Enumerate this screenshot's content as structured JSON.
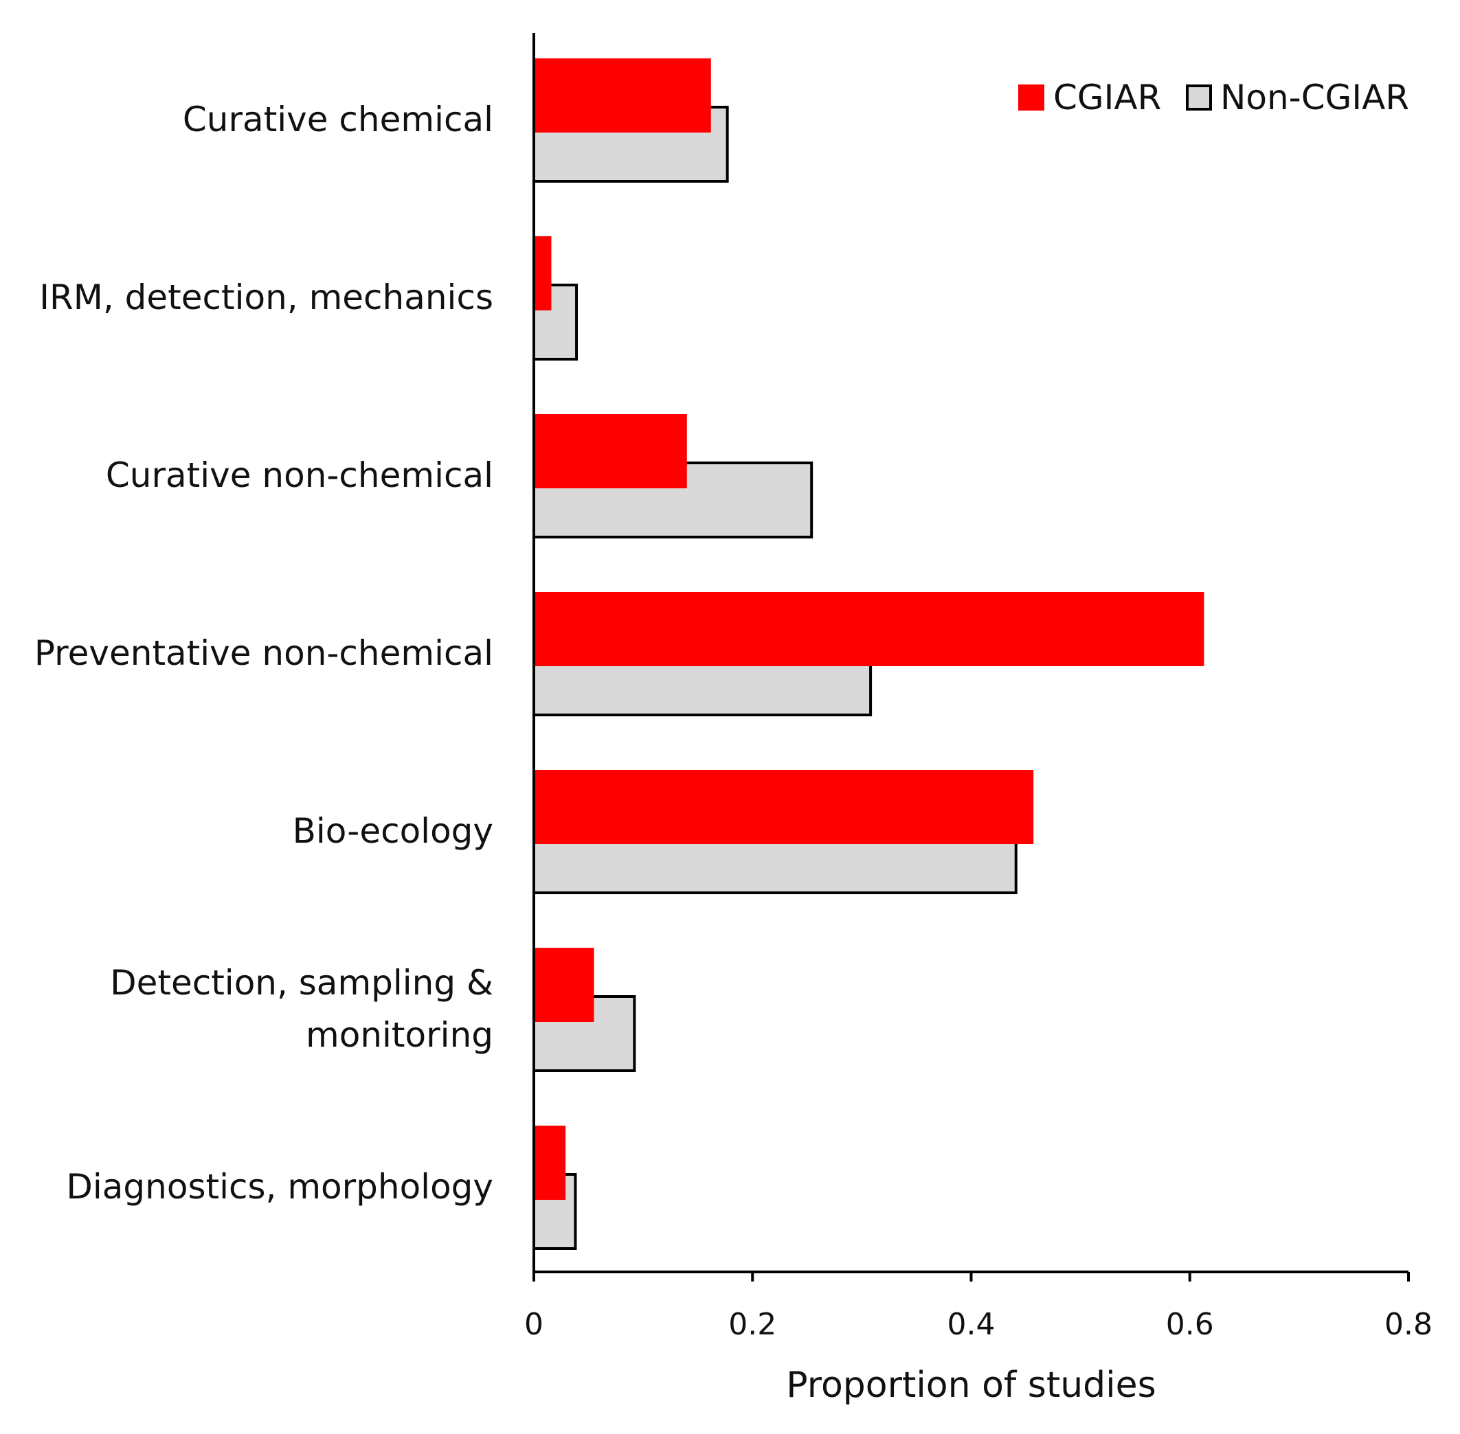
{
  "chart_data": {
    "type": "bar",
    "orientation": "horizontal",
    "title": "",
    "xlabel": "Proportion of studies",
    "ylabel": "",
    "xlim": [
      0,
      0.8
    ],
    "x_ticks": [
      "0",
      "0.2",
      "0.4",
      "0.6",
      "0.8"
    ],
    "grid": false,
    "legend_position": "top-right",
    "categories": [
      "Curative chemical",
      "IRM, detection, mechanics",
      "Curative non-chemical",
      "Preventative non-chemical",
      "Bio-ecology",
      "Detection, sampling & monitoring",
      "Diagnostics, morphology"
    ],
    "category_lines": [
      [
        "Curative chemical"
      ],
      [
        "IRM, detection, mechanics"
      ],
      [
        "Curative non-chemical"
      ],
      [
        "Preventative non-chemical"
      ],
      [
        "Bio-ecology"
      ],
      [
        "Detection, sampling &",
        "monitoring"
      ],
      [
        "Diagnostics, morphology"
      ]
    ],
    "series": [
      {
        "name": "CGIAR",
        "color": "#ff0000",
        "values": [
          0.162,
          0.016,
          0.14,
          0.613,
          0.457,
          0.055,
          0.029
        ]
      },
      {
        "name": "Non-CGIAR",
        "color": "#d9d9d9",
        "values": [
          0.177,
          0.039,
          0.254,
          0.308,
          0.441,
          0.092,
          0.038
        ]
      }
    ]
  }
}
